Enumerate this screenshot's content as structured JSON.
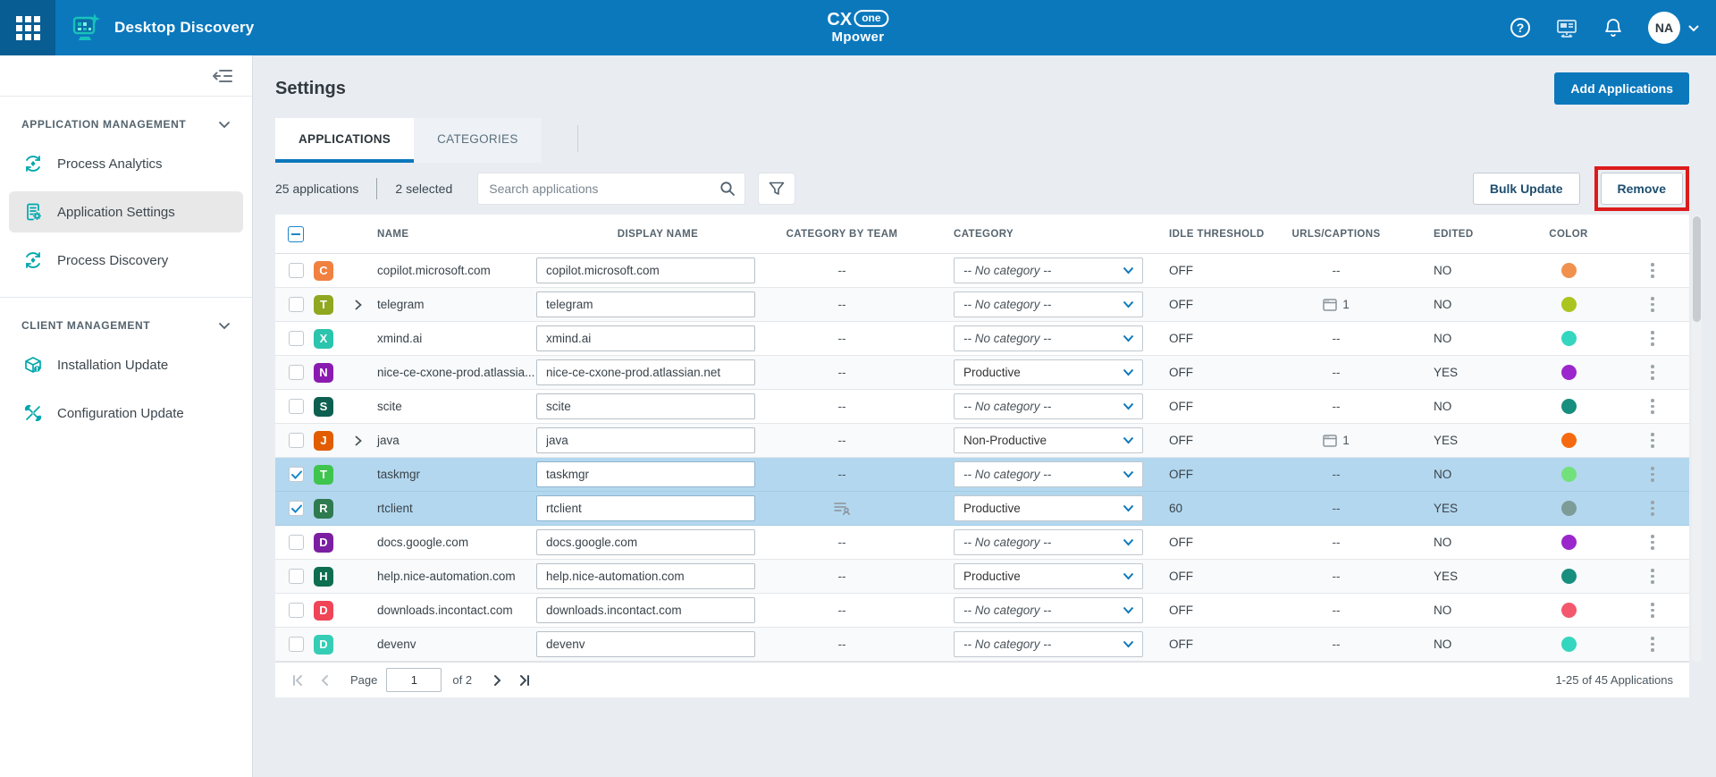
{
  "topbar": {
    "app_title": "Desktop Discovery",
    "logo": {
      "cx": "CX",
      "one": "one",
      "mpower": "Mpower"
    },
    "avatar_initials": "NA",
    "colors": {
      "bar": "#0b78bc",
      "waffle_bg": "#085d93",
      "logo_teal": "#17c2bc"
    }
  },
  "sidebar": {
    "sections": [
      {
        "label": "APPLICATION MANAGEMENT",
        "items": [
          {
            "label": "Process Analytics"
          },
          {
            "label": "Application Settings"
          },
          {
            "label": "Process Discovery"
          }
        ]
      },
      {
        "label": "CLIENT MANAGEMENT",
        "items": [
          {
            "label": "Installation Update"
          },
          {
            "label": "Configuration Update"
          }
        ]
      }
    ]
  },
  "main": {
    "page_title": "Settings",
    "add_applications_label": "Add Applications",
    "tabs": [
      {
        "label": "APPLICATIONS",
        "active": true
      },
      {
        "label": "CATEGORIES",
        "active": false
      }
    ],
    "toolbar": {
      "count_text": "25 applications",
      "selected_text": "2 selected",
      "search_placeholder": "Search applications",
      "bulk_update_label": "Bulk Update",
      "remove_label": "Remove",
      "remove_highlight_color": "#dc1c1c"
    },
    "table": {
      "columns": [
        "NAME",
        "DISPLAY NAME",
        "CATEGORY BY TEAM",
        "CATEGORY",
        "IDLE THRESHOLD",
        "URLS/CAPTIONS",
        "EDITED",
        "COLOR"
      ],
      "selected_row_color": "#b3d7ee",
      "rows": [
        {
          "name": "copilot.microsoft.com",
          "initial": "C",
          "icon_color": "#f08140",
          "expandable": false,
          "selected": false,
          "display_name": "copilot.microsoft.com",
          "category_by_team": "--",
          "category": "-- No category --",
          "category_placeholder": true,
          "idle_threshold": "OFF",
          "urls_captions": "--",
          "url_count": null,
          "edited": "NO",
          "dot_color": "#f0914e"
        },
        {
          "name": "telegram",
          "initial": "T",
          "icon_color": "#8fa820",
          "expandable": true,
          "selected": false,
          "display_name": "telegram",
          "category_by_team": "--",
          "category": "-- No category --",
          "category_placeholder": true,
          "idle_threshold": "OFF",
          "urls_captions": "icon",
          "url_count": "1",
          "edited": "NO",
          "dot_color": "#abc420"
        },
        {
          "name": "xmind.ai",
          "initial": "X",
          "icon_color": "#2bc4ad",
          "expandable": false,
          "selected": false,
          "display_name": "xmind.ai",
          "category_by_team": "--",
          "category": "-- No category --",
          "category_placeholder": true,
          "idle_threshold": "OFF",
          "urls_captions": "--",
          "url_count": null,
          "edited": "NO",
          "dot_color": "#35d6c0"
        },
        {
          "name": "nice-ce-cxone-prod.atlassia...",
          "initial": "N",
          "icon_color": "#8a1bb0",
          "expandable": false,
          "selected": false,
          "display_name": "nice-ce-cxone-prod.atlassian.net",
          "category_by_team": "--",
          "category": "Productive",
          "category_placeholder": false,
          "idle_threshold": "OFF",
          "urls_captions": "--",
          "url_count": null,
          "edited": "YES",
          "dot_color": "#9b27cc"
        },
        {
          "name": "scite",
          "initial": "S",
          "icon_color": "#0d5f50",
          "expandable": false,
          "selected": false,
          "display_name": "scite",
          "category_by_team": "--",
          "category": "-- No category --",
          "category_placeholder": true,
          "idle_threshold": "OFF",
          "urls_captions": "--",
          "url_count": null,
          "edited": "NO",
          "dot_color": "#188f7e"
        },
        {
          "name": "java",
          "initial": "J",
          "icon_color": "#e25c00",
          "expandable": true,
          "selected": false,
          "display_name": "java",
          "category_by_team": "--",
          "category": "Non-Productive",
          "category_placeholder": false,
          "idle_threshold": "OFF",
          "urls_captions": "icon",
          "url_count": "1",
          "edited": "YES",
          "dot_color": "#f56a10"
        },
        {
          "name": "taskmgr",
          "initial": "T",
          "icon_color": "#3fc54e",
          "expandable": false,
          "selected": true,
          "display_name": "taskmgr",
          "category_by_team": "--",
          "category": "-- No category --",
          "category_placeholder": true,
          "idle_threshold": "OFF",
          "urls_captions": "--",
          "url_count": null,
          "edited": "NO",
          "dot_color": "#72e17c"
        },
        {
          "name": "rtclient",
          "initial": "R",
          "icon_color": "#2e7b50",
          "expandable": false,
          "selected": true,
          "display_name": "rtclient",
          "category_by_team": "team-icon",
          "category": "Productive",
          "category_placeholder": false,
          "idle_threshold": "60",
          "urls_captions": "--",
          "url_count": null,
          "edited": "YES",
          "dot_color": "#7d9c98"
        },
        {
          "name": "docs.google.com",
          "initial": "D",
          "icon_color": "#7b1fa2",
          "expandable": false,
          "selected": false,
          "display_name": "docs.google.com",
          "category_by_team": "--",
          "category": "-- No category --",
          "category_placeholder": true,
          "idle_threshold": "OFF",
          "urls_captions": "--",
          "url_count": null,
          "edited": "NO",
          "dot_color": "#9b27cc"
        },
        {
          "name": "help.nice-automation.com",
          "initial": "H",
          "icon_color": "#0e6e50",
          "expandable": false,
          "selected": false,
          "display_name": "help.nice-automation.com",
          "category_by_team": "--",
          "category": "Productive",
          "category_placeholder": false,
          "idle_threshold": "OFF",
          "urls_captions": "--",
          "url_count": null,
          "edited": "YES",
          "dot_color": "#188f7e"
        },
        {
          "name": "downloads.incontact.com",
          "initial": "D",
          "icon_color": "#ef4557",
          "expandable": false,
          "selected": false,
          "display_name": "downloads.incontact.com",
          "category_by_team": "--",
          "category": "-- No category --",
          "category_placeholder": true,
          "idle_threshold": "OFF",
          "urls_captions": "--",
          "url_count": null,
          "edited": "NO",
          "dot_color": "#f4586c"
        },
        {
          "name": "devenv",
          "initial": "D",
          "icon_color": "#35cdb5",
          "expandable": false,
          "selected": false,
          "display_name": "devenv",
          "category_by_team": "--",
          "category": "-- No category --",
          "category_placeholder": true,
          "idle_threshold": "OFF",
          "urls_captions": "--",
          "url_count": null,
          "edited": "NO",
          "dot_color": "#35d6c0"
        }
      ]
    },
    "pagination": {
      "page_label": "Page",
      "page_value": "1",
      "of_label": "of 2",
      "range_text": "1-25 of 45 Applications"
    }
  }
}
